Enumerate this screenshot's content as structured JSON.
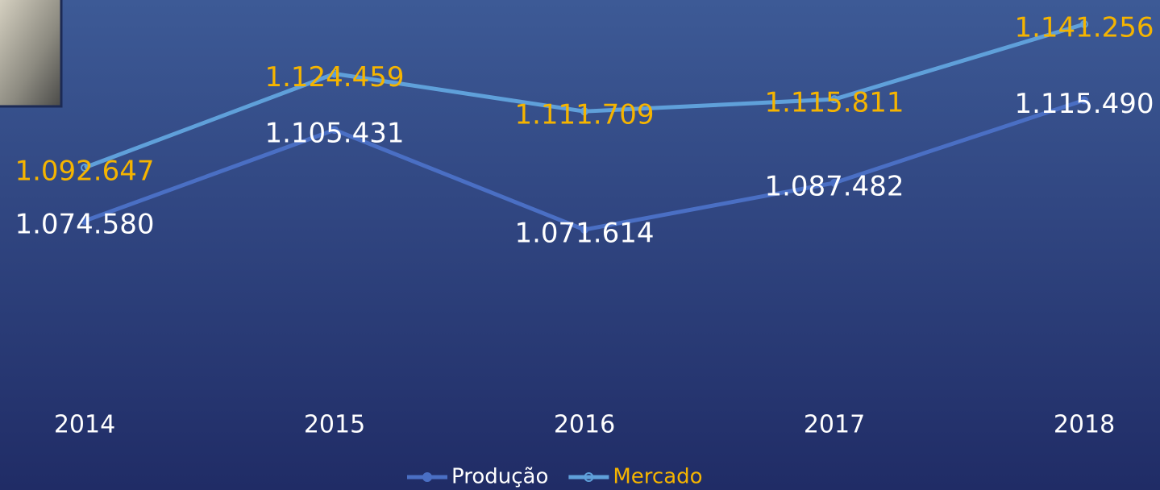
{
  "chart_data": {
    "type": "line",
    "categories": [
      "2014",
      "2015",
      "2016",
      "2017",
      "2018"
    ],
    "series": [
      {
        "name": "Produção",
        "color": "#4a6fc4",
        "label_color": "#ffffff",
        "values": [
          1074580,
          1105431,
          1071614,
          1087482,
          1115490
        ],
        "value_labels": [
          "1.074.580",
          "1.105.431",
          "1.071.614",
          "1.087.482",
          "1.115.490"
        ]
      },
      {
        "name": "Mercado",
        "color": "#5fa0da",
        "label_color": "#f5b400",
        "values": [
          1092647,
          1124459,
          1111709,
          1115811,
          1141256
        ],
        "value_labels": [
          "1.092.647",
          "1.124.459",
          "1.111.709",
          "1.115.811",
          "1.141.256"
        ]
      }
    ],
    "legend": "bottom"
  }
}
